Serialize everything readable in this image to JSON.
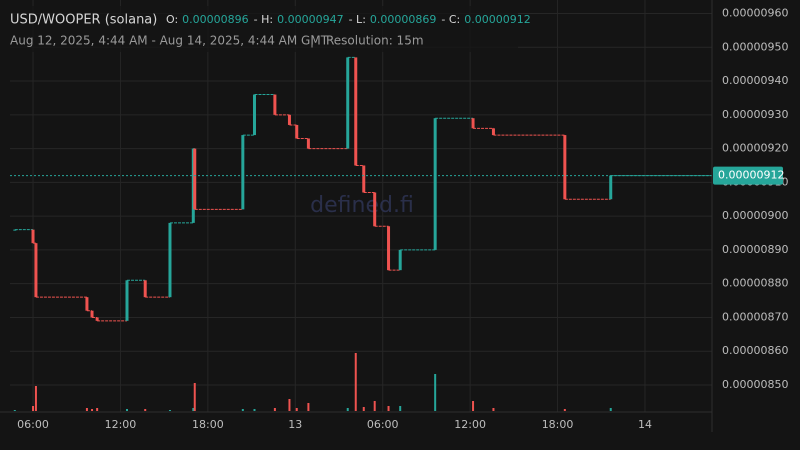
{
  "chart_data": {
    "type": "candlestick",
    "title": "USD/WOOPER (solana)",
    "ohlc": [
      {
        "label": "O:",
        "value": 8.96e-06
      },
      {
        "label": "- H:",
        "value": 9.47e-06
      },
      {
        "label": "- L:",
        "value": 8.69e-06
      },
      {
        "label": "- C:",
        "value": 9.12e-06
      }
    ],
    "subtitle": "Aug 12, 2025, 4:44 AM - Aug 14, 2025, 4:44 AM GMT",
    "separator": "|",
    "resolution": "Resolution: 15m",
    "watermark": "defined.fi",
    "up_color": "#26a69a",
    "down_color": "#ef5350",
    "grid": true,
    "xlim": [
      4.42,
      52.6
    ],
    "xticks": [
      {
        "value": 6,
        "label": "06:00"
      },
      {
        "value": 12,
        "label": "12:00"
      },
      {
        "value": 18,
        "label": "18:00"
      },
      {
        "value": 24,
        "label": "13"
      },
      {
        "value": 30,
        "label": "06:00"
      },
      {
        "value": 36,
        "label": "12:00"
      },
      {
        "value": 42,
        "label": "18:00"
      },
      {
        "value": 48,
        "label": "14"
      }
    ],
    "ylim": [
      8.42e-06,
      9.64e-06
    ],
    "yticks": [
      {
        "value": 8.5e-06,
        "label": "0.00000850"
      },
      {
        "value": 8.6e-06,
        "label": "0.00000860"
      },
      {
        "value": 8.7e-06,
        "label": "0.00000870"
      },
      {
        "value": 8.8e-06,
        "label": "0.00000880"
      },
      {
        "value": 8.9e-06,
        "label": "0.00000890"
      },
      {
        "value": 9e-06,
        "label": "0.00000900"
      },
      {
        "value": 9.1e-06,
        "label": "0.00000910"
      },
      {
        "value": 9.2e-06,
        "label": "0.00000920"
      },
      {
        "value": 9.3e-06,
        "label": "0.00000930"
      },
      {
        "value": 9.4e-06,
        "label": "0.00000940"
      },
      {
        "value": 9.5e-06,
        "label": "0.00000950"
      },
      {
        "value": 9.6e-06,
        "label": "0.00000960"
      }
    ],
    "candles": {
      "x": [
        4.75,
        6.0,
        6.2,
        9.7,
        10.05,
        10.4,
        12.45,
        13.7,
        15.4,
        17.0,
        17.1,
        20.4,
        21.2,
        22.6,
        23.6,
        24.1,
        24.9,
        27.6,
        28.15,
        28.7,
        29.45,
        30.4,
        31.2,
        33.6,
        36.2,
        37.6,
        42.5,
        45.65
      ],
      "open": [
        8.96e-06,
        8.96e-06,
        8.92e-06,
        8.76e-06,
        8.72e-06,
        8.7e-06,
        8.69e-06,
        8.81e-06,
        8.76e-06,
        8.98e-06,
        9.2e-06,
        9.02e-06,
        9.24e-06,
        9.36e-06,
        9.3e-06,
        9.27e-06,
        9.23e-06,
        9.2e-06,
        9.47e-06,
        9.15e-06,
        9.07e-06,
        8.97e-06,
        8.84e-06,
        8.9e-06,
        9.29e-06,
        9.26e-06,
        9.24e-06,
        9.05e-06
      ],
      "close": [
        8.96e-06,
        8.92e-06,
        8.76e-06,
        8.72e-06,
        8.7e-06,
        8.69e-06,
        8.81e-06,
        8.76e-06,
        8.98e-06,
        9.2e-06,
        9.02e-06,
        9.24e-06,
        9.36e-06,
        9.3e-06,
        9.27e-06,
        9.23e-06,
        9.2e-06,
        9.47e-06,
        9.15e-06,
        9.07e-06,
        8.97e-06,
        8.84e-06,
        8.9e-06,
        9.29e-06,
        9.26e-06,
        9.24e-06,
        9.05e-06,
        9.12e-06
      ],
      "volume": [
        1,
        5,
        25,
        3,
        2,
        3,
        2,
        2,
        1,
        3,
        28,
        2,
        2,
        3,
        12,
        3,
        8,
        3,
        58,
        4,
        10,
        5,
        5,
        37,
        10,
        3,
        2,
        3
      ]
    }
  }
}
